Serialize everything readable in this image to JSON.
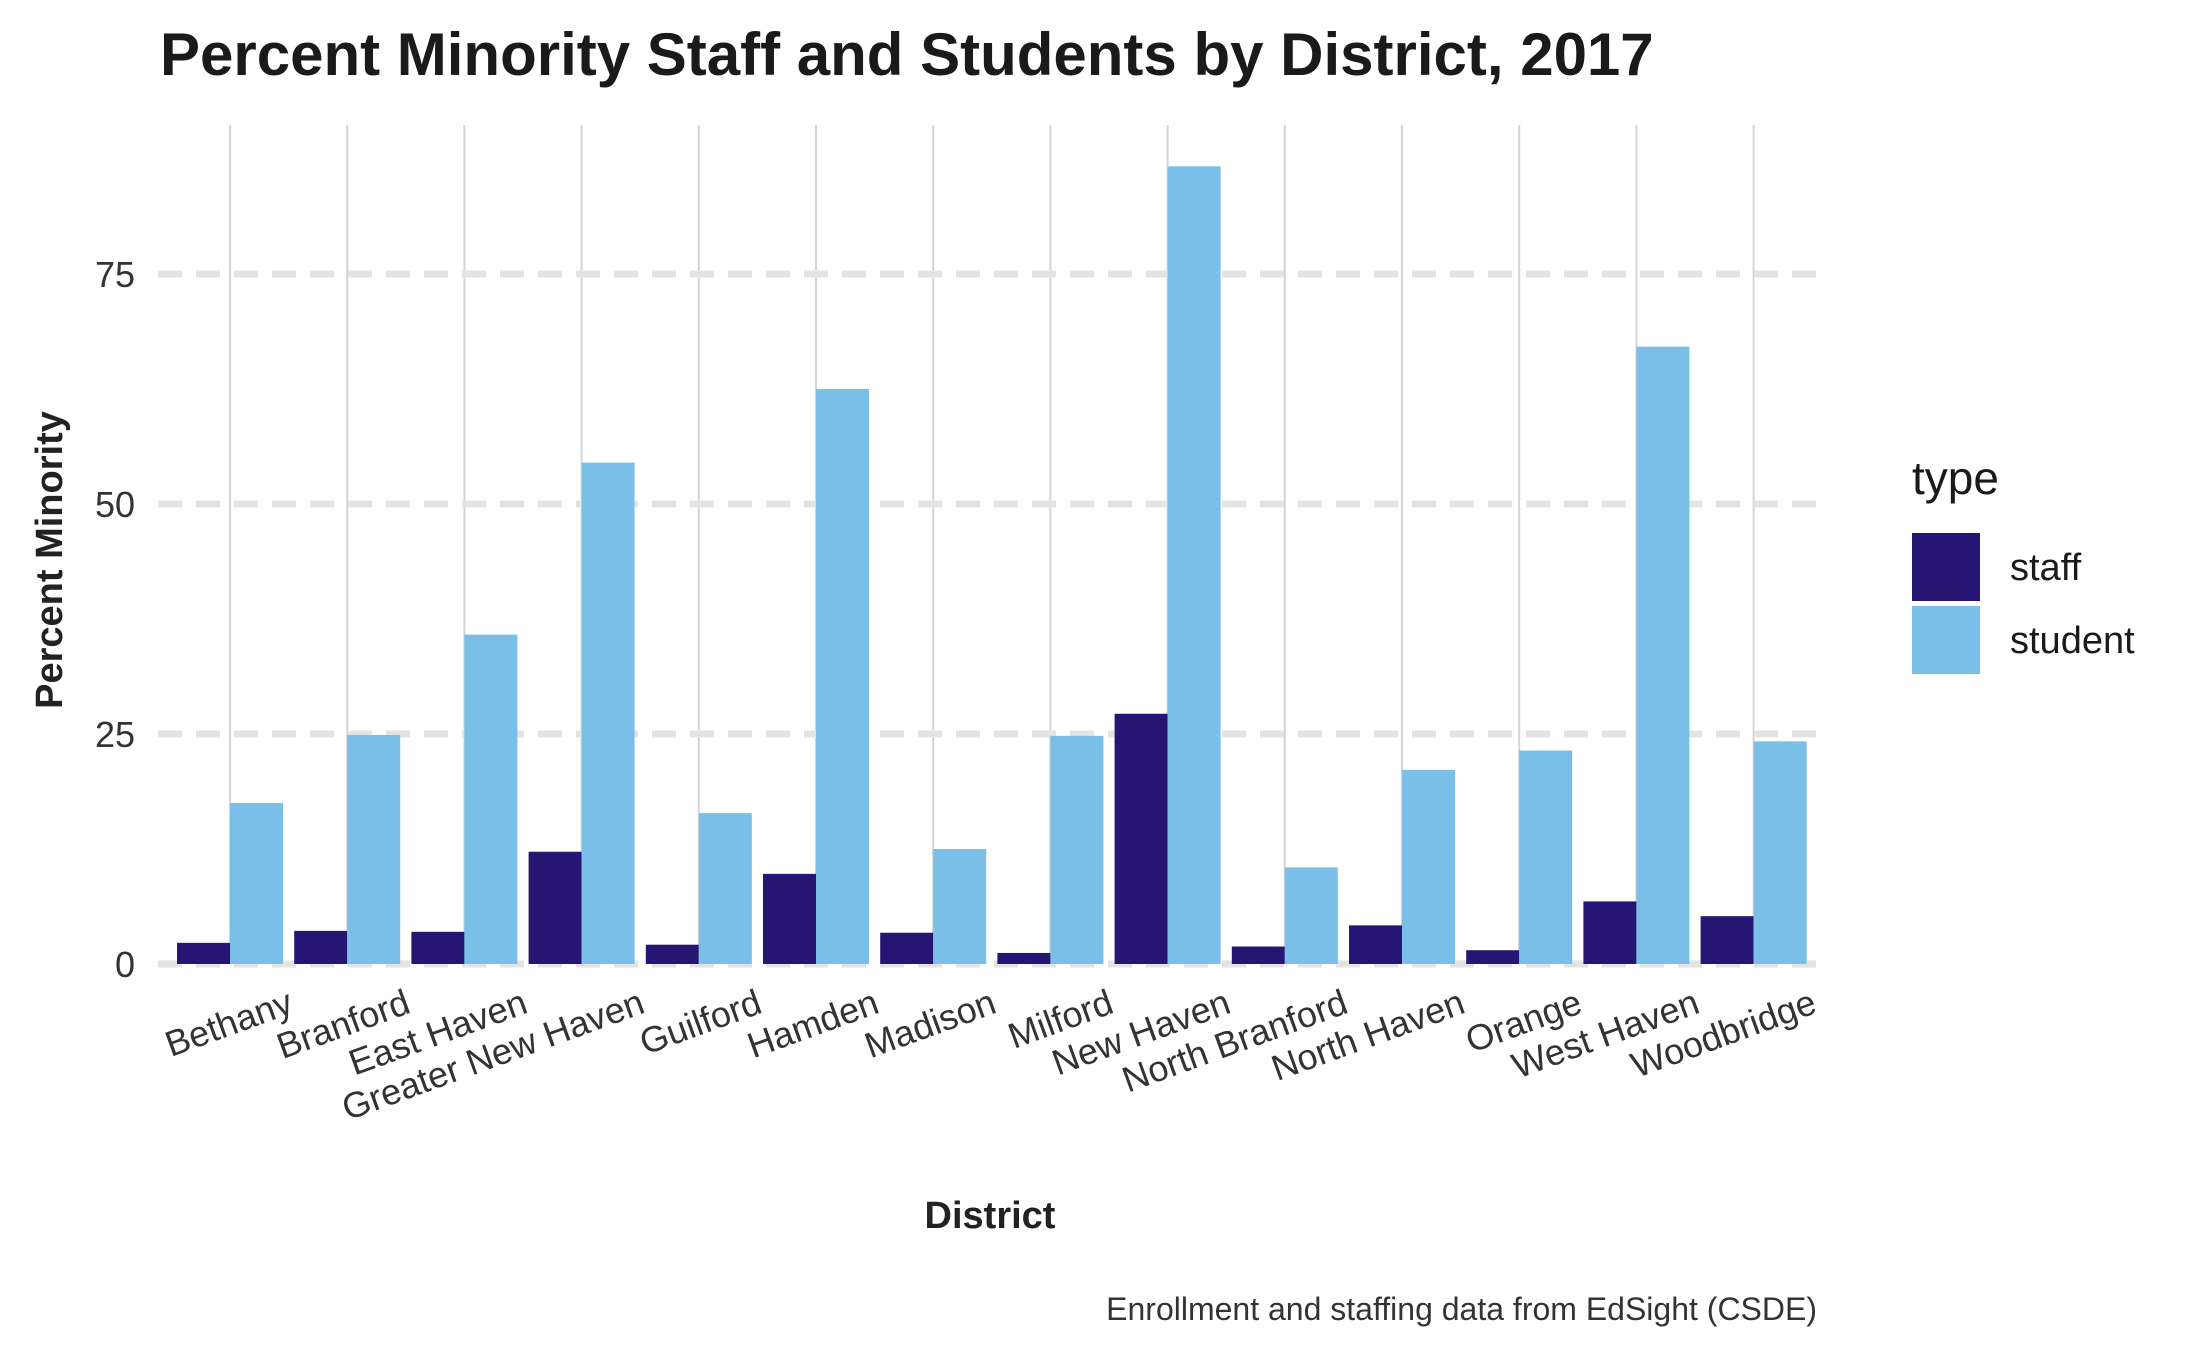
{
  "chart_data": {
    "type": "bar",
    "title": "Percent Minority Staff and Students by District, 2017",
    "xlabel": "District",
    "ylabel": "Percent Minority",
    "caption": "Enrollment and staffing data from EdSight (CSDE)",
    "categories": [
      "Bethany",
      "Branford",
      "East Haven",
      "Greater New Haven",
      "Guilford",
      "Hamden",
      "Madison",
      "Milford",
      "New Haven",
      "North Branford",
      "North Haven",
      "Orange",
      "West Haven",
      "Woodbridge"
    ],
    "series": [
      {
        "name": "staff",
        "color": "#261572",
        "values": [
          2.3,
          3.6,
          3.5,
          12.2,
          2.1,
          9.8,
          3.4,
          1.2,
          27.2,
          1.9,
          4.2,
          1.5,
          6.8,
          5.2
        ]
      },
      {
        "name": "student",
        "color": "#79bfe8",
        "values": [
          17.5,
          24.9,
          35.8,
          54.5,
          16.4,
          62.5,
          12.5,
          24.8,
          86.7,
          10.5,
          21.1,
          23.2,
          67.1,
          24.2
        ]
      }
    ],
    "yticks": [
      "0",
      "25",
      "50",
      "75"
    ],
    "ytick_values": [
      0,
      25,
      50,
      75
    ],
    "ylim": [
      0,
      90
    ],
    "legend_title": "type",
    "legend_position": "right",
    "grid": true
  }
}
